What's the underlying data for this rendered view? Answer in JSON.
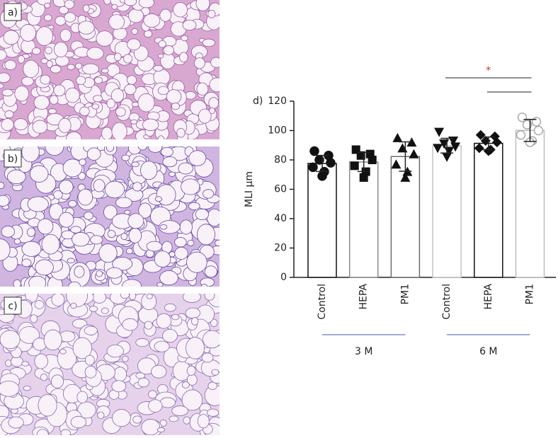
{
  "panels": [
    "a)",
    "b)",
    "c)"
  ],
  "chart_data": {
    "type": "bar",
    "panel_label": "d)",
    "y_label": "MLI µm",
    "categories": [
      "Control",
      "HEPA",
      "PM1",
      "Control",
      "HEPA",
      "PM1"
    ],
    "groups": [
      "3 M",
      "6 M"
    ],
    "values": [
      77.6,
      78.6,
      82.3,
      89.7,
      91.3,
      100.1
    ],
    "errors": [
      5.5,
      6.5,
      10,
      5,
      4.3,
      7.5
    ],
    "points": [
      [
        86,
        83,
        80,
        78,
        75,
        72,
        69
      ],
      [
        87,
        84,
        83,
        80,
        76,
        72,
        68
      ],
      [
        95,
        92,
        88,
        84,
        77,
        72,
        68
      ],
      [
        99,
        93,
        91,
        89,
        88,
        86,
        82
      ],
      [
        97,
        96,
        93,
        92,
        88,
        87,
        86
      ],
      [
        109,
        106,
        104,
        100,
        97,
        93,
        92
      ]
    ],
    "markers": [
      "circle",
      "square",
      "triangle-up",
      "triangle-down",
      "diamond",
      "circle-open"
    ],
    "bar_colors": [
      "#111111",
      "#8a8a8a",
      "#6e6e6e",
      "#c4c4c4",
      "#111111",
      "#bdbdbd"
    ],
    "ylim": [
      0,
      120
    ],
    "yticks": [
      0,
      20,
      40,
      60,
      80,
      100,
      120
    ],
    "annotations": [
      "*"
    ]
  }
}
